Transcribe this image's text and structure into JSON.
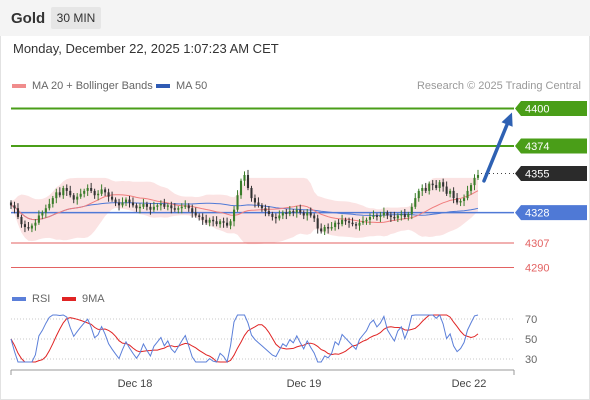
{
  "header": {
    "symbol": "Gold",
    "timeframe": "30 MIN"
  },
  "datetime": "Monday, December 22, 2025 1:07:23 AM CET",
  "legend": {
    "ma20_label": "MA 20 + Bollinger Bands",
    "ma50_label": "MA 50",
    "copyright": "Research © 2025 Trading Central"
  },
  "rsi_legend": {
    "rsi_label": "RSI",
    "ma_label": "9MA"
  },
  "colors": {
    "up": "#3a7d2a",
    "down": "#333333",
    "resistance": "#4a9e18",
    "support": "#4f79d6",
    "weak": "#e36262",
    "band": "#fbe3e3",
    "ma20": "#f07d7d",
    "ma50": "#4f79d6",
    "arrow": "#2e61b3",
    "last_price": "#2b2b2b",
    "rsi": "#5b7fd9",
    "rsi_ma": "#e02424"
  },
  "chart_data": [
    {
      "type": "candlestick",
      "title": "",
      "x_ticks": [
        "Dec 18",
        "Dec 19",
        "Dec 22"
      ],
      "ylim": [
        4280,
        4410
      ],
      "levels": [
        {
          "value": 4400,
          "label": "4400",
          "kind": "resistance"
        },
        {
          "value": 4374,
          "label": "4374",
          "kind": "resistance"
        },
        {
          "value": 4355,
          "label": "4355",
          "kind": "last"
        },
        {
          "value": 4328,
          "label": "4328",
          "kind": "support"
        },
        {
          "value": 4307,
          "label": "4307",
          "kind": "weak"
        },
        {
          "value": 4290,
          "label": "4290",
          "kind": "weak"
        }
      ],
      "projection": {
        "from": 4352,
        "to": 4400
      },
      "closes": [
        4333,
        4331,
        4325,
        4320,
        4318,
        4317,
        4319,
        4321,
        4326,
        4328,
        4331,
        4334,
        4338,
        4342,
        4340,
        4345,
        4343,
        4340,
        4337,
        4339,
        4341,
        4343,
        4345,
        4343,
        4340,
        4341,
        4344,
        4342,
        4339,
        4337,
        4335,
        4333,
        4335,
        4337,
        4335,
        4333,
        4331,
        4332,
        4334,
        4332,
        4330,
        4332,
        4333,
        4334,
        4332,
        4333,
        4331,
        4330,
        4331,
        4332,
        4333,
        4331,
        4328,
        4326,
        4325,
        4323,
        4321,
        4323,
        4322,
        4320,
        4322,
        4321,
        4319,
        4322,
        4330,
        4340,
        4350,
        4354,
        4345,
        4338,
        4335,
        4333,
        4331,
        4329,
        4327,
        4325,
        4324,
        4326,
        4328,
        4327,
        4329,
        4328,
        4330,
        4328,
        4326,
        4328,
        4326,
        4324,
        4317,
        4315,
        4318,
        4317,
        4318,
        4321,
        4320,
        4323,
        4322,
        4321,
        4320,
        4319,
        4321,
        4322,
        4323,
        4325,
        4326,
        4325,
        4326,
        4328,
        4326,
        4325,
        4324,
        4326,
        4327,
        4325,
        4327,
        4332,
        4338,
        4343,
        4345,
        4343,
        4348,
        4347,
        4345,
        4349,
        4346,
        4341,
        4343,
        4338,
        4335,
        4336,
        4338,
        4343,
        4347,
        4352,
        4354
      ],
      "bollinger": {
        "upper_max": 4352,
        "lower_min": 4300
      },
      "ma20": "trailing 20-bar average of closes",
      "ma50": "trailing 50-bar average of closes"
    },
    {
      "type": "line",
      "title": "RSI",
      "ylim": [
        25,
        75
      ],
      "y_ticks": [
        70,
        50,
        30
      ],
      "series": [
        {
          "name": "RSI"
        },
        {
          "name": "9MA"
        }
      ]
    }
  ]
}
